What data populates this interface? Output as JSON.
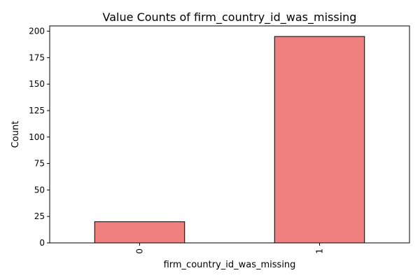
{
  "chart_data": {
    "type": "bar",
    "title": "Value Counts of firm_country_id_was_missing",
    "xlabel": "firm_country_id_was_missing",
    "ylabel": "Count",
    "categories": [
      "0",
      "1"
    ],
    "values": [
      20,
      195
    ],
    "ylim": [
      0,
      205
    ],
    "yticks": [
      0,
      25,
      50,
      75,
      100,
      125,
      150,
      175,
      200
    ],
    "grid": false,
    "legend": "none",
    "bar_color": "#f08080",
    "bar_edge_color": "#000000"
  }
}
